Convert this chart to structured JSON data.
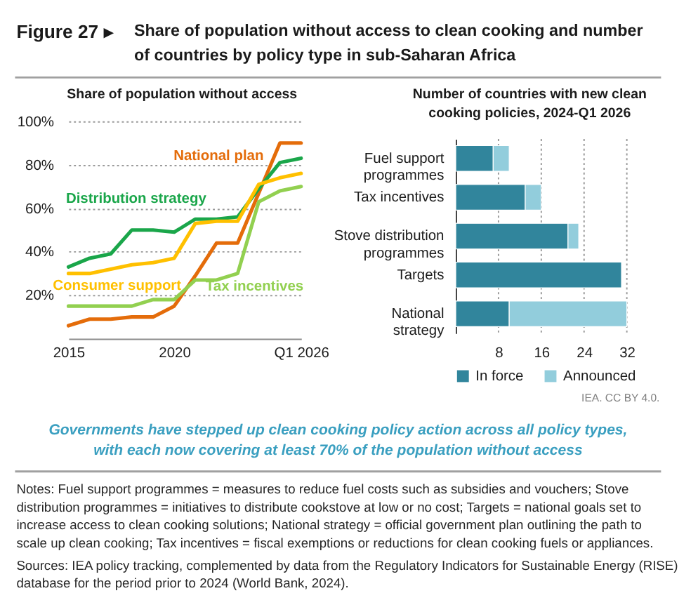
{
  "chart_data": [
    {
      "type": "line",
      "title": "Share of population without access",
      "x": [
        2015,
        2016,
        2017,
        2018,
        2019,
        2020,
        2021,
        2022,
        2023,
        2024,
        2025,
        2026
      ],
      "xlim": [
        2015,
        2026
      ],
      "xticks": [
        2015,
        2020,
        {
          "value": 2026,
          "label": "Q1 2026"
        }
      ],
      "ylim": [
        0,
        100
      ],
      "yticks": [
        {
          "value": 20,
          "label": "20%"
        },
        {
          "value": 40,
          "label": "40%"
        },
        {
          "value": 60,
          "label": "60%"
        },
        {
          "value": 80,
          "label": "80%"
        },
        {
          "value": 100,
          "label": "100%"
        }
      ],
      "grid": "y",
      "series": [
        {
          "name": "National plan",
          "color": "#e46c0a",
          "values": [
            6,
            9,
            9,
            10,
            10,
            15,
            29,
            44,
            44,
            67,
            90,
            90
          ]
        },
        {
          "name": "Distribution strategy",
          "color": "#1aa64a",
          "values": [
            33,
            37,
            39,
            50,
            50,
            49,
            55,
            55,
            56,
            69,
            81,
            83
          ]
        },
        {
          "name": "Consumer support",
          "color": "#ffc000",
          "values": [
            30,
            30,
            32,
            34,
            35,
            37,
            53,
            54,
            54,
            71,
            74,
            76
          ]
        },
        {
          "name": "Tax incentives",
          "color": "#92d050",
          "values": [
            15,
            15,
            15,
            15,
            18,
            18,
            27,
            27,
            30,
            63,
            68,
            70
          ]
        }
      ],
      "annotations": [
        "Figure 27 ▸",
        "Share of population without access to clean cooking and number of countries by policy type in sub-Saharan Africa"
      ]
    },
    {
      "type": "bar",
      "orientation": "horizontal",
      "stacked": true,
      "title": "Number of countries with new clean cooking policies, 2024-Q1 2026",
      "categories": [
        "Fuel support programmes",
        "Tax incentives",
        "Stove distribution programmes",
        "Targets",
        "National strategy"
      ],
      "series": [
        {
          "name": "In force",
          "color": "#31859c",
          "values": [
            7,
            13,
            21,
            31,
            10
          ]
        },
        {
          "name": "Announced",
          "color": "#92cddc",
          "values": [
            3,
            3,
            2,
            null,
            22
          ]
        }
      ],
      "xlim": [
        0,
        32
      ],
      "xticks": [
        8,
        16,
        24,
        32
      ],
      "grid": "x",
      "legend": "bottom",
      "annotations": [
        "IEA. CC BY 4.0.",
        "Governments have stepped up clean cooking policy action across all policy types, with each now covering at least 70% of the population without access",
        "Notes: Fuel support programmes = measures to reduce fuel costs such as subsidies and vouchers; Stove distribution programmes = initiatives to distribute cookstove at low or no cost; Targets = national goals set to increase access to clean cooking solutions; National strategy = official government plan outlining the path to scale up clean cooking; Tax incentives = fiscal exemptions or reductions for clean cooking fuels or appliances.",
        "Sources: IEA policy tracking, complemented by data from the Regulatory Indicators for Sustainable Energy (RISE) database for the period prior to 2024 (World Bank, 2024)."
      ]
    }
  ]
}
